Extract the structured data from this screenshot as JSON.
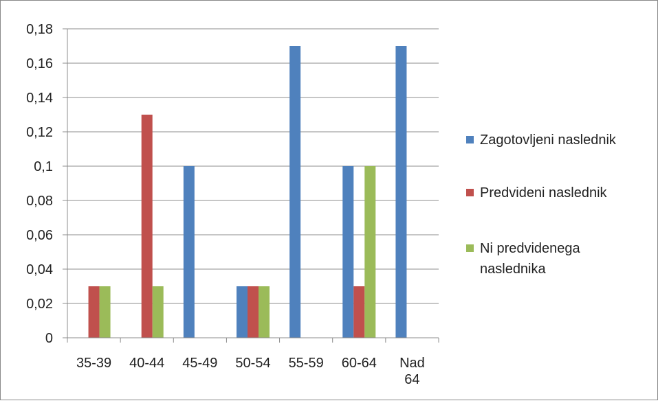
{
  "chart_data": {
    "type": "bar",
    "title": "",
    "xlabel": "",
    "ylabel": "",
    "ylim": [
      0,
      0.18
    ],
    "yticks": [
      "0",
      "0,02",
      "0,04",
      "0,06",
      "0,08",
      "0,1",
      "0,12",
      "0,14",
      "0,16",
      "0,18"
    ],
    "categories": [
      [
        "35-39"
      ],
      [
        "40-44"
      ],
      [
        "45-49"
      ],
      [
        "50-54"
      ],
      [
        "55-59"
      ],
      [
        "60-64"
      ],
      [
        "Nad",
        "64"
      ]
    ],
    "series": [
      {
        "name": "Zagotovljeni naslednik",
        "name_lines": [
          "Zagotovljeni naslednik"
        ],
        "color": "#4F81BD",
        "values": [
          0,
          0,
          0.1,
          0.03,
          0.17,
          0.1,
          0.17
        ]
      },
      {
        "name": "Predvideni naslednik",
        "name_lines": [
          "Predvideni naslednik"
        ],
        "color": "#C0504D",
        "values": [
          0.03,
          0.13,
          0,
          0.03,
          0,
          0.03,
          0
        ]
      },
      {
        "name": "Ni predvidenega naslednika",
        "name_lines": [
          "Ni predvidenega",
          "naslednika"
        ],
        "color": "#9BBB59",
        "values": [
          0.03,
          0.03,
          0,
          0.03,
          0,
          0.1,
          0
        ]
      }
    ],
    "grid": true,
    "legend_position": "right"
  }
}
